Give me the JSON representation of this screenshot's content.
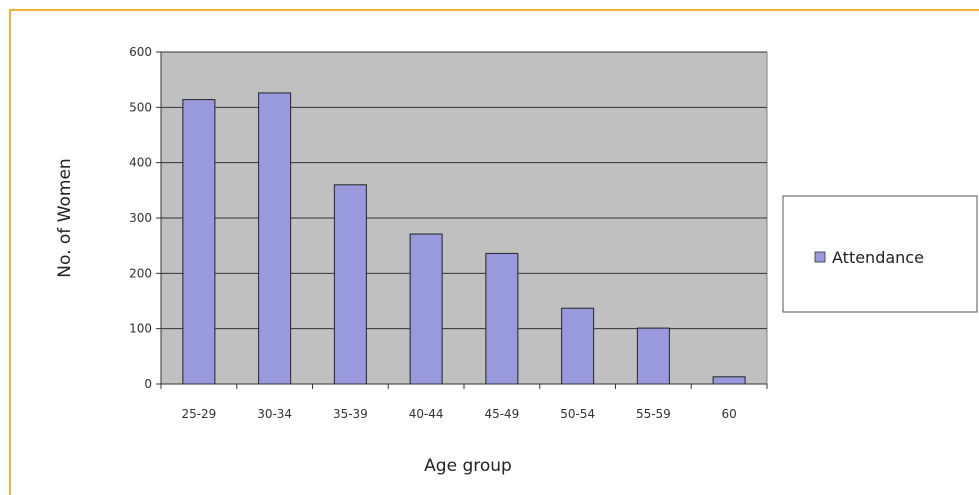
{
  "chart_data": {
    "type": "bar",
    "categories": [
      "25-29",
      "30-34",
      "35-39",
      "40-44",
      "45-49",
      "50-54",
      "55-59",
      "60"
    ],
    "series": [
      {
        "name": "Attendance",
        "values": [
          514,
          526,
          360,
          271,
          236,
          137,
          101,
          13
        ],
        "color": "#9999dd"
      }
    ],
    "title": "",
    "xlabel": "Age group",
    "ylabel": "No. of Women",
    "ylim": [
      0,
      600
    ],
    "yticks": [
      0,
      100,
      200,
      300,
      400,
      500,
      600
    ],
    "grid": true,
    "legend_position": "right",
    "plot_background": "#c0c0c0",
    "frame_color": "#f2b330"
  }
}
